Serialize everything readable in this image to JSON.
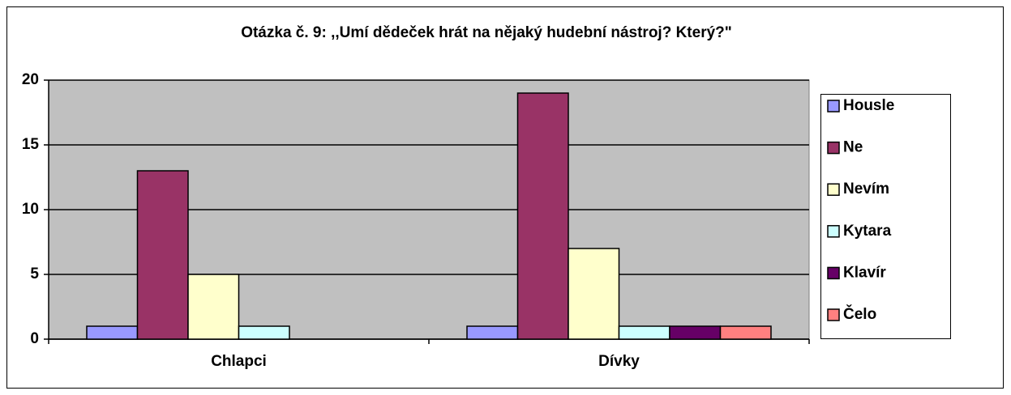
{
  "chart_data": {
    "type": "bar",
    "title": "Otázka č. 9: ,,Umí dědeček hrát na nějaký hudební nástroj? Který?\"",
    "categories": [
      "Chlapci",
      "Dívky"
    ],
    "series": [
      {
        "name": "Housle",
        "color": "#9999ff",
        "values": [
          1,
          1
        ]
      },
      {
        "name": "Ne",
        "color": "#993366",
        "values": [
          13,
          19
        ]
      },
      {
        "name": "Nevím",
        "color": "#ffffcc",
        "values": [
          5,
          7
        ]
      },
      {
        "name": "Kytara",
        "color": "#ccffff",
        "values": [
          1,
          1
        ]
      },
      {
        "name": "Klavír",
        "color": "#660066",
        "values": [
          0,
          1
        ]
      },
      {
        "name": "Čelo",
        "color": "#ff8080",
        "values": [
          0,
          1
        ]
      }
    ],
    "ylim": [
      0,
      20
    ],
    "yticks": [
      0,
      5,
      10,
      15,
      20
    ],
    "grid": true,
    "legend": "right"
  }
}
